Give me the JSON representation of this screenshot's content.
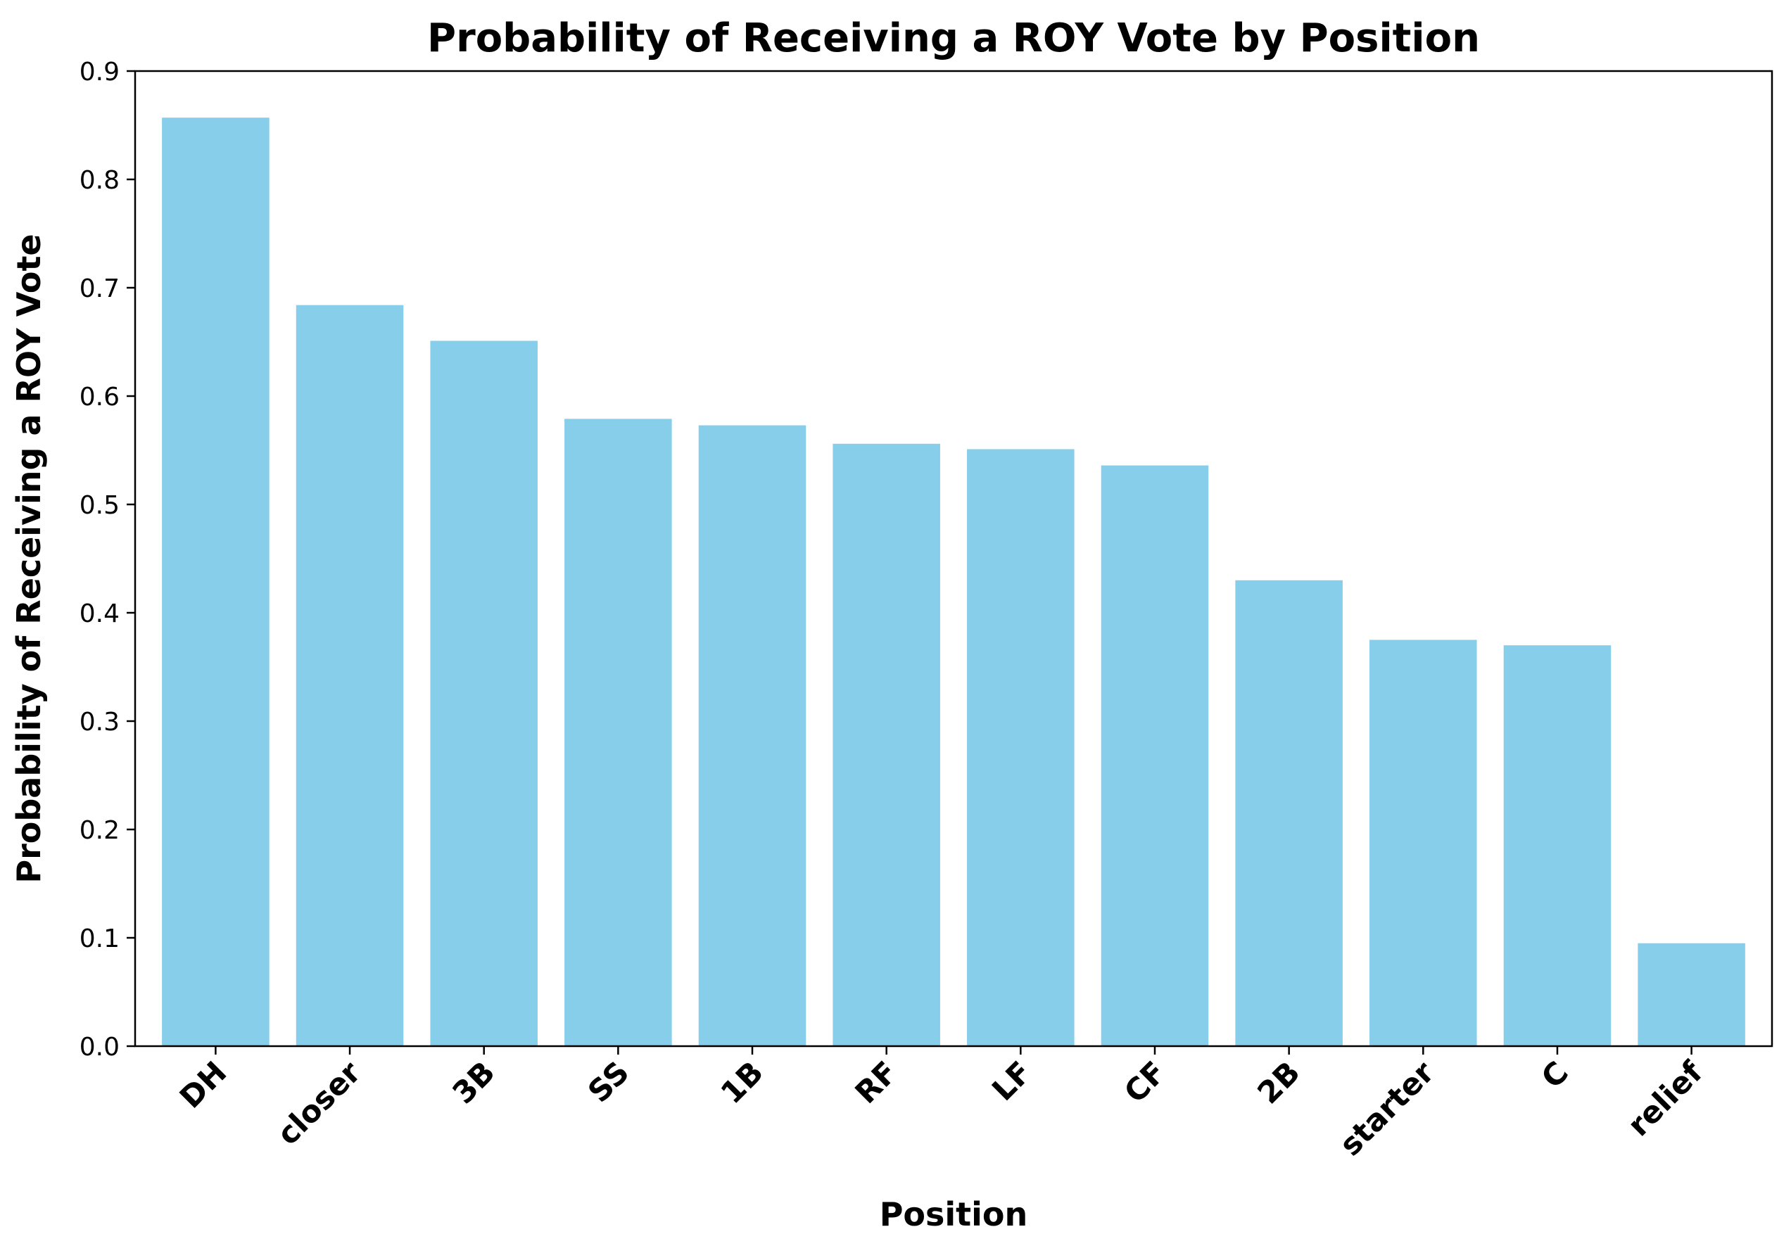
{
  "chart_data": {
    "type": "bar",
    "title": "Probability of Receiving a ROY Vote by Position",
    "xlabel": "Position",
    "ylabel": "Probability of Receiving a ROY Vote",
    "categories": [
      "DH",
      "closer",
      "3B",
      "SS",
      "1B",
      "RF",
      "LF",
      "CF",
      "2B",
      "starter",
      "C",
      "relief"
    ],
    "values": [
      0.857,
      0.684,
      0.651,
      0.579,
      0.573,
      0.556,
      0.551,
      0.536,
      0.43,
      0.375,
      0.37,
      0.095
    ],
    "ylim": [
      0,
      0.9
    ],
    "yticks": [
      "0.0",
      "0.1",
      "0.2",
      "0.3",
      "0.4",
      "0.5",
      "0.6",
      "0.7",
      "0.8",
      "0.9"
    ],
    "bar_color": "#87CEEB",
    "grid": false,
    "legend": "none"
  }
}
